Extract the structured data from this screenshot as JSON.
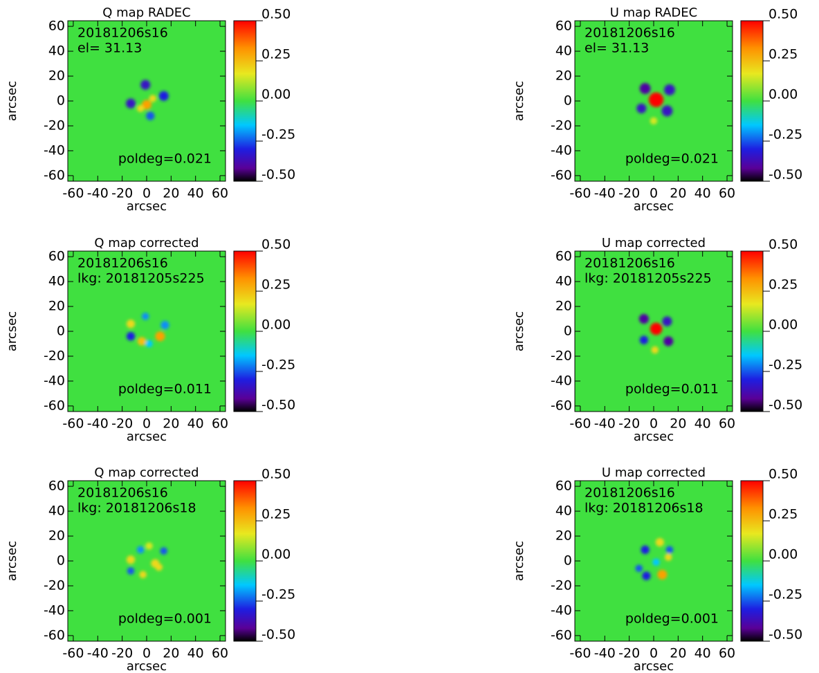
{
  "chart_data": [
    {
      "type": "heatmap",
      "title": "Q map RADEC",
      "annotations": [
        "20181206s16",
        "el= 31.13",
        "poldeg=0.021"
      ],
      "xlabel": "arcsec",
      "ylabel": "arcsec",
      "xlim": [
        -64.5,
        64.5
      ],
      "ylim": [
        -64.5,
        64.5
      ],
      "xticks": [
        -60,
        -40,
        -20,
        0,
        20,
        40,
        60
      ],
      "yticks": [
        -60,
        -40,
        -20,
        0,
        20,
        40,
        60
      ],
      "clim": [
        -0.5,
        0.5
      ],
      "cticks": [
        {
          "value": 0.5,
          "label": "0.50"
        },
        {
          "value": 0.25,
          "label": "0.25"
        },
        {
          "value": 0,
          "label": "0.00"
        },
        {
          "value": -0.25,
          "label": "-0.25"
        },
        {
          "value": -0.5,
          "label": "-0.50"
        }
      ],
      "points": {
        "x": [
          -1,
          -13,
          14,
          3,
          0,
          5,
          -5
        ],
        "y": [
          13,
          -2,
          4,
          -12,
          -3,
          2,
          -6
        ],
        "values": [
          -0.35,
          -0.35,
          -0.3,
          -0.25,
          0.3,
          0.2,
          0.2
        ],
        "sizes": [
          4,
          4,
          4,
          3.5,
          4,
          3,
          3
        ]
      }
    },
    {
      "type": "heatmap",
      "title": "U map RADEC",
      "annotations": [
        "20181206s16",
        "el= 31.13",
        "poldeg=0.021"
      ],
      "xlabel": "arcsec",
      "ylabel": "arcsec",
      "xlim": [
        -64.5,
        64.5
      ],
      "ylim": [
        -64.5,
        64.5
      ],
      "xticks": [
        -60,
        -40,
        -20,
        0,
        20,
        40,
        60
      ],
      "yticks": [
        -60,
        -40,
        -20,
        0,
        20,
        40,
        60
      ],
      "clim": [
        -0.5,
        0.5
      ],
      "cticks": [
        {
          "value": 0.5,
          "label": "0.50"
        },
        {
          "value": 0.25,
          "label": "0.25"
        },
        {
          "value": 0,
          "label": "0.00"
        },
        {
          "value": -0.25,
          "label": "-0.25"
        },
        {
          "value": -0.5,
          "label": "-0.50"
        }
      ],
      "points": {
        "x": [
          2,
          -7,
          13,
          -10,
          11,
          0
        ],
        "y": [
          1,
          10,
          9,
          -6,
          -8,
          -16
        ],
        "values": [
          0.5,
          -0.4,
          -0.35,
          -0.35,
          -0.35,
          0.15
        ],
        "sizes": [
          6,
          4.5,
          4.5,
          4,
          4.5,
          3
        ]
      }
    },
    {
      "type": "heatmap",
      "title": "Q map corrected",
      "annotations": [
        "20181206s16",
        "lkg: 20181205s225",
        "poldeg=0.011"
      ],
      "xlabel": "arcsec",
      "ylabel": "arcsec",
      "xlim": [
        -64.5,
        64.5
      ],
      "ylim": [
        -64.5,
        64.5
      ],
      "xticks": [
        -60,
        -40,
        -20,
        0,
        20,
        40,
        60
      ],
      "yticks": [
        -60,
        -40,
        -20,
        0,
        20,
        40,
        60
      ],
      "clim": [
        -0.5,
        0.5
      ],
      "cticks": [
        {
          "value": 0.5,
          "label": "0.50"
        },
        {
          "value": 0.25,
          "label": "0.25"
        },
        {
          "value": 0,
          "label": "0.00"
        },
        {
          "value": -0.25,
          "label": "-0.25"
        },
        {
          "value": -0.5,
          "label": "-0.50"
        }
      ],
      "points": {
        "x": [
          -13,
          15,
          -13,
          -1,
          11,
          -4,
          2
        ],
        "y": [
          6,
          5,
          -4,
          12,
          -4,
          -8,
          -10
        ],
        "values": [
          0.2,
          -0.2,
          -0.3,
          -0.2,
          0.3,
          0.25,
          -0.15
        ],
        "sizes": [
          3.5,
          3.5,
          3.5,
          3,
          4,
          3.5,
          3
        ]
      }
    },
    {
      "type": "heatmap",
      "title": "U map corrected",
      "annotations": [
        "20181206s16",
        "lkg: 20181205s225",
        "poldeg=0.011"
      ],
      "xlabel": "arcsec",
      "ylabel": "arcsec",
      "xlim": [
        -64.5,
        64.5
      ],
      "ylim": [
        -64.5,
        64.5
      ],
      "xticks": [
        -60,
        -40,
        -20,
        0,
        20,
        40,
        60
      ],
      "yticks": [
        -60,
        -40,
        -20,
        0,
        20,
        40,
        60
      ],
      "clim": [
        -0.5,
        0.5
      ],
      "cticks": [
        {
          "value": 0.5,
          "label": "0.50"
        },
        {
          "value": 0.25,
          "label": "0.25"
        },
        {
          "value": 0,
          "label": "0.00"
        },
        {
          "value": -0.25,
          "label": "-0.25"
        },
        {
          "value": -0.5,
          "label": "-0.50"
        }
      ],
      "points": {
        "x": [
          2,
          -8,
          11,
          -8,
          12,
          1
        ],
        "y": [
          2,
          10,
          8,
          -7,
          -8,
          -15
        ],
        "values": [
          0.5,
          -0.4,
          -0.35,
          -0.3,
          -0.4,
          0.2
        ],
        "sizes": [
          5,
          4,
          4,
          3.5,
          4,
          3
        ]
      }
    },
    {
      "type": "heatmap",
      "title": "Q map corrected",
      "annotations": [
        "20181206s16",
        "lkg: 20181206s18",
        "poldeg=0.001"
      ],
      "xlabel": "arcsec",
      "ylabel": "arcsec",
      "xlim": [
        -64.5,
        64.5
      ],
      "ylim": [
        -64.5,
        64.5
      ],
      "xticks": [
        -60,
        -40,
        -20,
        0,
        20,
        40,
        60
      ],
      "yticks": [
        -60,
        -40,
        -20,
        0,
        20,
        40,
        60
      ],
      "clim": [
        -0.5,
        0.5
      ],
      "cticks": [
        {
          "value": 0.5,
          "label": "0.50"
        },
        {
          "value": 0.25,
          "label": "0.25"
        },
        {
          "value": 0,
          "label": "0.00"
        },
        {
          "value": -0.25,
          "label": "-0.25"
        },
        {
          "value": -0.5,
          "label": "-0.50"
        }
      ],
      "points": {
        "x": [
          -13,
          14,
          -13,
          -5,
          7,
          -3,
          10,
          2
        ],
        "y": [
          1,
          8,
          -8,
          9,
          -2,
          -11,
          -5,
          12
        ],
        "values": [
          0.2,
          -0.25,
          -0.25,
          -0.2,
          0.2,
          0.2,
          0.2,
          0.15
        ],
        "sizes": [
          3.5,
          3,
          3,
          3,
          3.5,
          3,
          3,
          3
        ]
      }
    },
    {
      "type": "heatmap",
      "title": "U map corrected",
      "annotations": [
        "20181206s16",
        "lkg: 20181206s18",
        "poldeg=0.001"
      ],
      "xlabel": "arcsec",
      "ylabel": "arcsec",
      "xlim": [
        -64.5,
        64.5
      ],
      "ylim": [
        -64.5,
        64.5
      ],
      "xticks": [
        -60,
        -40,
        -20,
        0,
        20,
        40,
        60
      ],
      "yticks": [
        -60,
        -40,
        -20,
        0,
        20,
        40,
        60
      ],
      "clim": [
        -0.5,
        0.5
      ],
      "cticks": [
        {
          "value": 0.5,
          "label": "0.50"
        },
        {
          "value": 0.25,
          "label": "0.25"
        },
        {
          "value": 0,
          "label": "0.00"
        },
        {
          "value": -0.25,
          "label": "-0.25"
        },
        {
          "value": -0.5,
          "label": "-0.50"
        }
      ],
      "points": {
        "x": [
          -7,
          13,
          -12,
          5,
          12,
          7,
          -6,
          2
        ],
        "y": [
          9,
          9,
          -6,
          15,
          3,
          -11,
          -12,
          -1
        ],
        "values": [
          -0.3,
          -0.25,
          -0.25,
          0.2,
          0.2,
          0.3,
          -0.3,
          -0.15
        ],
        "sizes": [
          3.5,
          3,
          3,
          3.5,
          3,
          4,
          3.5,
          3
        ]
      }
    }
  ]
}
